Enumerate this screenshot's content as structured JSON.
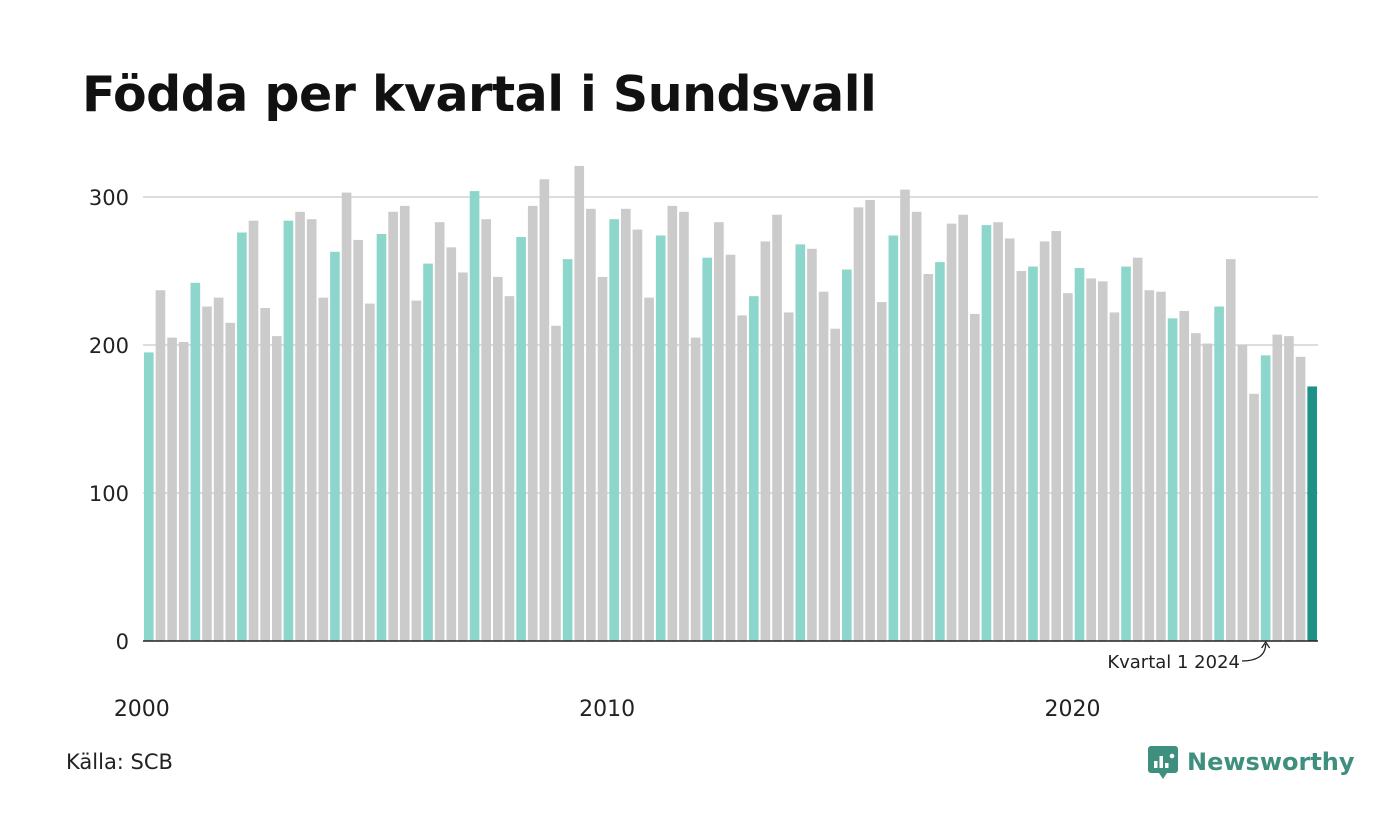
{
  "colors": {
    "q1": "#8dd6cb",
    "other": "#cbcbcb",
    "latest": "#1e9187",
    "grid": "#dddddd",
    "axis": "#222222",
    "brand": "#3f8f7e"
  },
  "source": "Källa: SCB",
  "brand": {
    "name": "Newsworthy",
    "icon": "newsworthy-logo-icon"
  },
  "chart_data": {
    "type": "bar",
    "title": "Födda per kvartal i Sundsvall",
    "xlabel": "",
    "ylabel": "",
    "ylim": [
      0,
      320
    ],
    "yticks": [
      0,
      100,
      200,
      300
    ],
    "grid": true,
    "x_tick_labels": [
      "2000",
      "2010",
      "2020"
    ],
    "annotation": {
      "text": "Kvartal 1 2024",
      "target": "2024 Q1"
    },
    "series": [
      {
        "values": [
          195,
          237,
          205,
          202,
          242,
          226,
          232,
          215,
          276,
          284,
          225,
          206,
          284,
          290,
          285,
          232,
          263,
          303,
          271,
          228,
          275,
          290,
          294,
          230,
          255,
          283,
          266,
          249,
          304,
          285,
          246,
          233,
          273,
          294,
          312,
          213,
          258,
          321,
          292,
          246,
          285,
          292,
          278,
          232,
          274,
          294,
          290,
          205,
          259,
          283,
          261,
          220,
          233,
          270,
          288,
          222,
          268,
          265,
          236,
          211,
          251,
          293,
          298,
          229,
          274,
          305,
          290,
          248,
          256,
          282,
          288,
          221,
          281,
          283,
          272,
          250,
          253,
          270,
          277,
          235,
          252,
          245,
          243,
          222,
          253,
          259,
          237,
          236,
          218,
          223,
          208,
          201,
          226,
          258,
          200,
          167,
          193,
          207,
          206,
          192,
          172
        ]
      }
    ]
  }
}
